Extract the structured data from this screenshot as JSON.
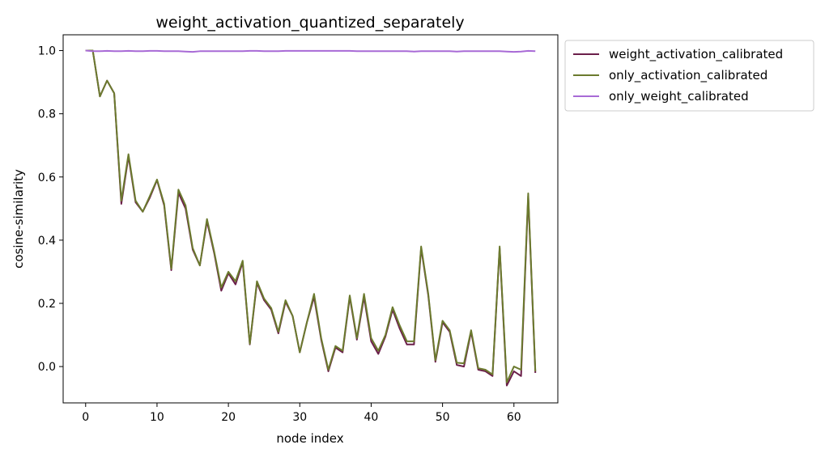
{
  "chart_data": {
    "type": "line",
    "title": "weight_activation_quantized_separately",
    "xlabel": "node index",
    "ylabel": "cosine-similarity",
    "xlim": [
      -3.15,
      66.15
    ],
    "ylim": [
      -0.115,
      1.05
    ],
    "xticks": [
      0,
      10,
      20,
      30,
      40,
      50,
      60
    ],
    "yticks": [
      0.0,
      0.2,
      0.4,
      0.6,
      0.8,
      1.0
    ],
    "xtick_labels": [
      "0",
      "10",
      "20",
      "30",
      "40",
      "50",
      "60"
    ],
    "ytick_labels": [
      "0.0",
      "0.2",
      "0.4",
      "0.6",
      "0.8",
      "1.0"
    ],
    "grid": false,
    "legend_position": "outside-upper-right",
    "x": [
      0,
      1,
      2,
      3,
      4,
      5,
      6,
      7,
      8,
      9,
      10,
      11,
      12,
      13,
      14,
      15,
      16,
      17,
      18,
      19,
      20,
      21,
      22,
      23,
      24,
      25,
      26,
      27,
      28,
      29,
      30,
      31,
      32,
      33,
      34,
      35,
      36,
      37,
      38,
      39,
      40,
      41,
      42,
      43,
      44,
      45,
      46,
      47,
      48,
      49,
      50,
      51,
      52,
      53,
      54,
      55,
      56,
      57,
      58,
      59,
      60,
      61,
      62,
      63
    ],
    "series": [
      {
        "name": "weight_activation_calibrated",
        "color": "#6b1f4a",
        "values": [
          1.0,
          1.0,
          0.855,
          0.905,
          0.865,
          0.515,
          0.665,
          0.52,
          0.49,
          0.535,
          0.59,
          0.51,
          0.305,
          0.55,
          0.5,
          0.37,
          0.32,
          0.46,
          0.36,
          0.24,
          0.295,
          0.26,
          0.33,
          0.07,
          0.265,
          0.21,
          0.18,
          0.105,
          0.205,
          0.16,
          0.045,
          0.14,
          0.22,
          0.085,
          -0.015,
          0.06,
          0.045,
          0.22,
          0.085,
          0.22,
          0.08,
          0.04,
          0.095,
          0.18,
          0.12,
          0.07,
          0.07,
          0.375,
          0.225,
          0.015,
          0.14,
          0.11,
          0.005,
          0.0,
          0.11,
          -0.01,
          -0.015,
          -0.03,
          0.375,
          -0.06,
          -0.015,
          -0.03,
          0.54,
          -0.02
        ]
      },
      {
        "name": "only_activation_calibrated",
        "color": "#6b7a2e",
        "values": [
          1.0,
          1.0,
          0.855,
          0.905,
          0.865,
          0.525,
          0.672,
          0.525,
          0.49,
          0.54,
          0.592,
          0.515,
          0.31,
          0.56,
          0.51,
          0.375,
          0.32,
          0.467,
          0.365,
          0.25,
          0.3,
          0.27,
          0.335,
          0.072,
          0.27,
          0.215,
          0.185,
          0.11,
          0.21,
          0.16,
          0.045,
          0.14,
          0.23,
          0.09,
          -0.01,
          0.065,
          0.05,
          0.225,
          0.09,
          0.23,
          0.09,
          0.05,
          0.1,
          0.188,
          0.13,
          0.08,
          0.08,
          0.38,
          0.23,
          0.02,
          0.145,
          0.115,
          0.012,
          0.01,
          0.115,
          -0.005,
          -0.01,
          -0.025,
          0.38,
          -0.05,
          0.0,
          -0.01,
          0.548,
          -0.015
        ]
      },
      {
        "name": "only_weight_calibrated",
        "color": "#a86ad6",
        "values": [
          1.0,
          0.998,
          0.998,
          0.999,
          0.998,
          0.998,
          0.999,
          0.998,
          0.998,
          0.999,
          0.999,
          0.998,
          0.998,
          0.998,
          0.997,
          0.996,
          0.998,
          0.998,
          0.998,
          0.998,
          0.998,
          0.998,
          0.998,
          0.999,
          0.999,
          0.998,
          0.998,
          0.998,
          0.999,
          0.999,
          0.999,
          0.999,
          0.999,
          0.999,
          0.999,
          0.999,
          0.999,
          0.999,
          0.998,
          0.998,
          0.998,
          0.998,
          0.998,
          0.998,
          0.998,
          0.998,
          0.997,
          0.998,
          0.998,
          0.998,
          0.998,
          0.998,
          0.997,
          0.998,
          0.998,
          0.998,
          0.998,
          0.998,
          0.998,
          0.997,
          0.996,
          0.997,
          0.999,
          0.998
        ]
      }
    ]
  }
}
